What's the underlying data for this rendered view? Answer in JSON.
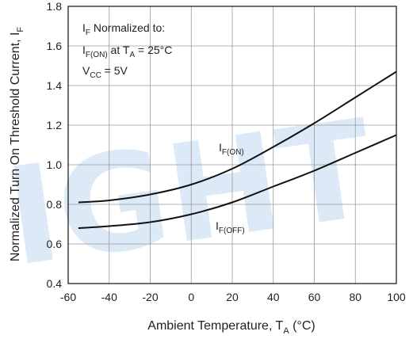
{
  "chart_data": {
    "type": "line",
    "title": "",
    "xlabel": "Ambient Temperature, T",
    "xlabel_sub": "A",
    "xlabel_tail": " (°C)",
    "ylabel": "Normalized Turn On Threshold Current, I",
    "ylabel_sub": "F",
    "xlim": [
      -60,
      100
    ],
    "ylim": [
      0.4,
      1.8
    ],
    "x_ticks": [
      "-60",
      "-40",
      "-20",
      "0",
      "20",
      "40",
      "60",
      "80",
      "100"
    ],
    "y_ticks": [
      "0.4",
      "0.6",
      "0.8",
      "1.0",
      "1.2",
      "1.4",
      "1.6",
      "1.8"
    ],
    "grid": true,
    "series": [
      {
        "name": "IF(ON)",
        "label_main": "I",
        "label_sub": "F(ON)",
        "x": [
          -55,
          -40,
          -20,
          0,
          20,
          40,
          60,
          80,
          100
        ],
        "y": [
          0.81,
          0.82,
          0.85,
          0.9,
          0.98,
          1.09,
          1.21,
          1.34,
          1.47
        ]
      },
      {
        "name": "IF(OFF)",
        "label_main": "I",
        "label_sub": "F(OFF)",
        "x": [
          -55,
          -40,
          -20,
          0,
          20,
          40,
          60,
          80,
          100
        ],
        "y": [
          0.68,
          0.69,
          0.71,
          0.75,
          0.81,
          0.89,
          0.97,
          1.06,
          1.15
        ]
      }
    ],
    "annotations": {
      "line1_main": "I",
      "line1_sub": "F",
      "line1_tail": " Normalized to:",
      "line2_main": "I",
      "line2_sub": "F(ON)",
      "line2_mid": " at T",
      "line2_sub2": "A",
      "line2_tail": " = 25°C",
      "line3_main": "V",
      "line3_sub": "CC",
      "line3_tail": " = 5V"
    }
  },
  "colors": {
    "grid": "#9a9a9a",
    "line": "#111111",
    "watermark": "#dce9f6"
  },
  "watermark": "IGHT"
}
